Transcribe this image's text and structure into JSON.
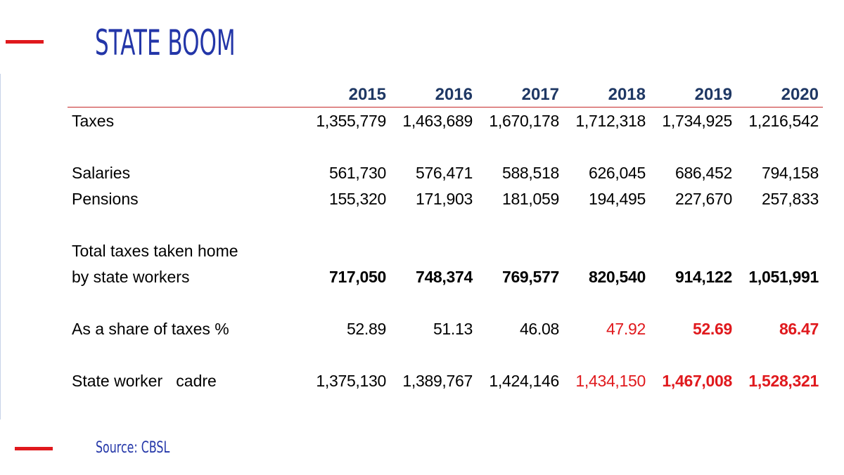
{
  "title": "STATE  BOOM",
  "source": "Source: CBSL",
  "colors": {
    "title_blue": "#2336a8",
    "header_navy": "#1f3864",
    "accent_red": "#e0191d"
  },
  "table": {
    "years": [
      "2015",
      "2016",
      "2017",
      "2018",
      "2019",
      "2020"
    ],
    "rows": {
      "taxes": {
        "label": "Taxes",
        "values": [
          "1,355,779",
          "1,463,689",
          "1,670,178",
          "1,712,318",
          "1,734,925",
          "1,216,542"
        ]
      },
      "salaries": {
        "label": "Salaries",
        "values": [
          "561,730",
          "576,471",
          "588,518",
          "626,045",
          "686,452",
          "794,158"
        ]
      },
      "pensions": {
        "label": "Pensions",
        "values": [
          "155,320",
          "171,903",
          "181,059",
          "194,495",
          "227,670",
          "257,833"
        ]
      },
      "total": {
        "label_line1": "Total taxes taken home",
        "label_line2": "by state workers",
        "values": [
          "717,050",
          "748,374",
          "769,577",
          "820,540",
          "914,122",
          "1,051,991"
        ]
      },
      "share": {
        "label": "As a share of taxes %",
        "values": [
          "52.89",
          "51.13",
          "46.08",
          "47.92",
          "52.69",
          "86.47"
        ]
      },
      "cadre": {
        "label": "State worker   cadre",
        "values": [
          "1,375,130",
          "1,389,767",
          "1,424,146",
          "1,434,150",
          "1,467,008",
          "1,528,321"
        ]
      }
    }
  }
}
